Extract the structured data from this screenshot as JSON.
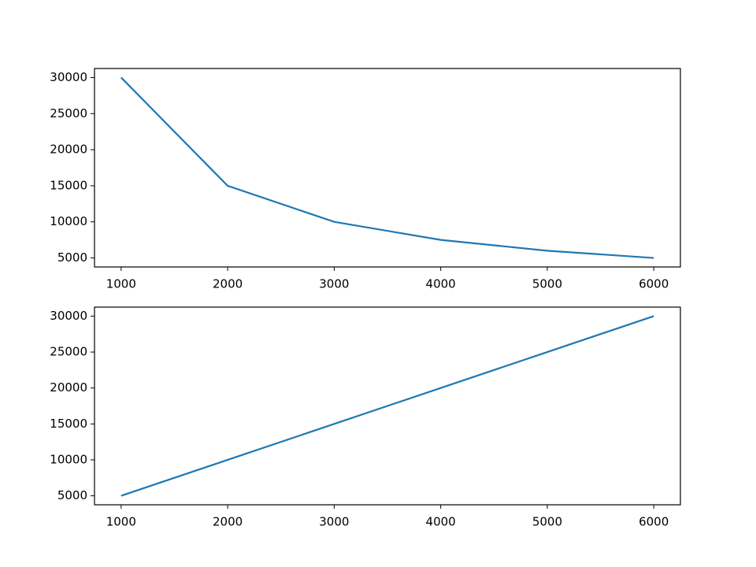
{
  "chart_data": [
    {
      "type": "line",
      "x": [
        1000,
        2000,
        3000,
        4000,
        5000,
        6000
      ],
      "series": [
        {
          "color": "#1f77b4",
          "values": [
            30000,
            15000,
            10000,
            7500,
            6000,
            5000
          ]
        }
      ],
      "xlim": [
        750,
        6250
      ],
      "ylim": [
        3750,
        31250
      ],
      "xticks": [
        1000,
        2000,
        3000,
        4000,
        5000,
        6000
      ],
      "yticks": [
        5000,
        10000,
        15000,
        20000,
        25000,
        30000
      ]
    },
    {
      "type": "line",
      "x": [
        1000,
        2000,
        3000,
        4000,
        5000,
        6000
      ],
      "series": [
        {
          "color": "#1f77b4",
          "values": [
            5000,
            10000,
            15000,
            20000,
            25000,
            30000
          ]
        }
      ],
      "xlim": [
        750,
        6250
      ],
      "ylim": [
        3750,
        31250
      ],
      "xticks": [
        1000,
        2000,
        3000,
        4000,
        5000,
        6000
      ],
      "yticks": [
        5000,
        10000,
        15000,
        20000,
        25000,
        30000
      ]
    }
  ]
}
